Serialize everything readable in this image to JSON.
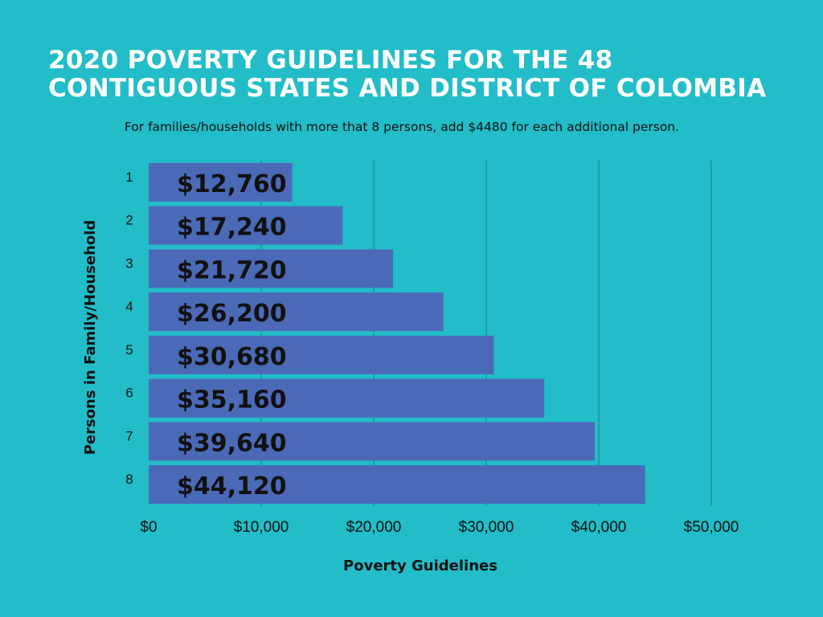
{
  "title_lines": [
    "2020 POVERTY GUIDELINES FOR THE 48",
    "CONTIGUOUS STATES AND DISTRICT OF COLOMBIA"
  ],
  "subtitle": "For families/households with more that 8 persons, add $4480 for each additional person.",
  "colors": {
    "background": "#22bdc8",
    "bar": "#4a6ab8",
    "grid": "#1a8a94",
    "title": "#ffffff",
    "text": "#111111"
  },
  "chart_data": {
    "type": "bar",
    "orientation": "horizontal",
    "title": "2020 POVERTY GUIDELINES FOR THE 48 CONTIGUOUS STATES AND DISTRICT OF COLOMBIA",
    "categories": [
      "1",
      "2",
      "3",
      "4",
      "5",
      "6",
      "7",
      "8"
    ],
    "values": [
      12760,
      17240,
      21720,
      26200,
      30680,
      35160,
      39640,
      44120
    ],
    "data_labels": [
      "$12,760",
      "$17,240",
      "$21,720",
      "$26,200",
      "$30,680",
      "$35,160",
      "$39,640",
      "$44,120"
    ],
    "xlabel": "Poverty Guidelines",
    "ylabel": "Persons in Family/Household",
    "xlim": [
      0,
      50000
    ],
    "x_ticks": [
      0,
      10000,
      20000,
      30000,
      40000,
      50000
    ],
    "x_tick_labels": [
      "$0",
      "$10,000",
      "$20,000",
      "$30,000",
      "$40,000",
      "$50,000"
    ],
    "grid": "vertical"
  }
}
